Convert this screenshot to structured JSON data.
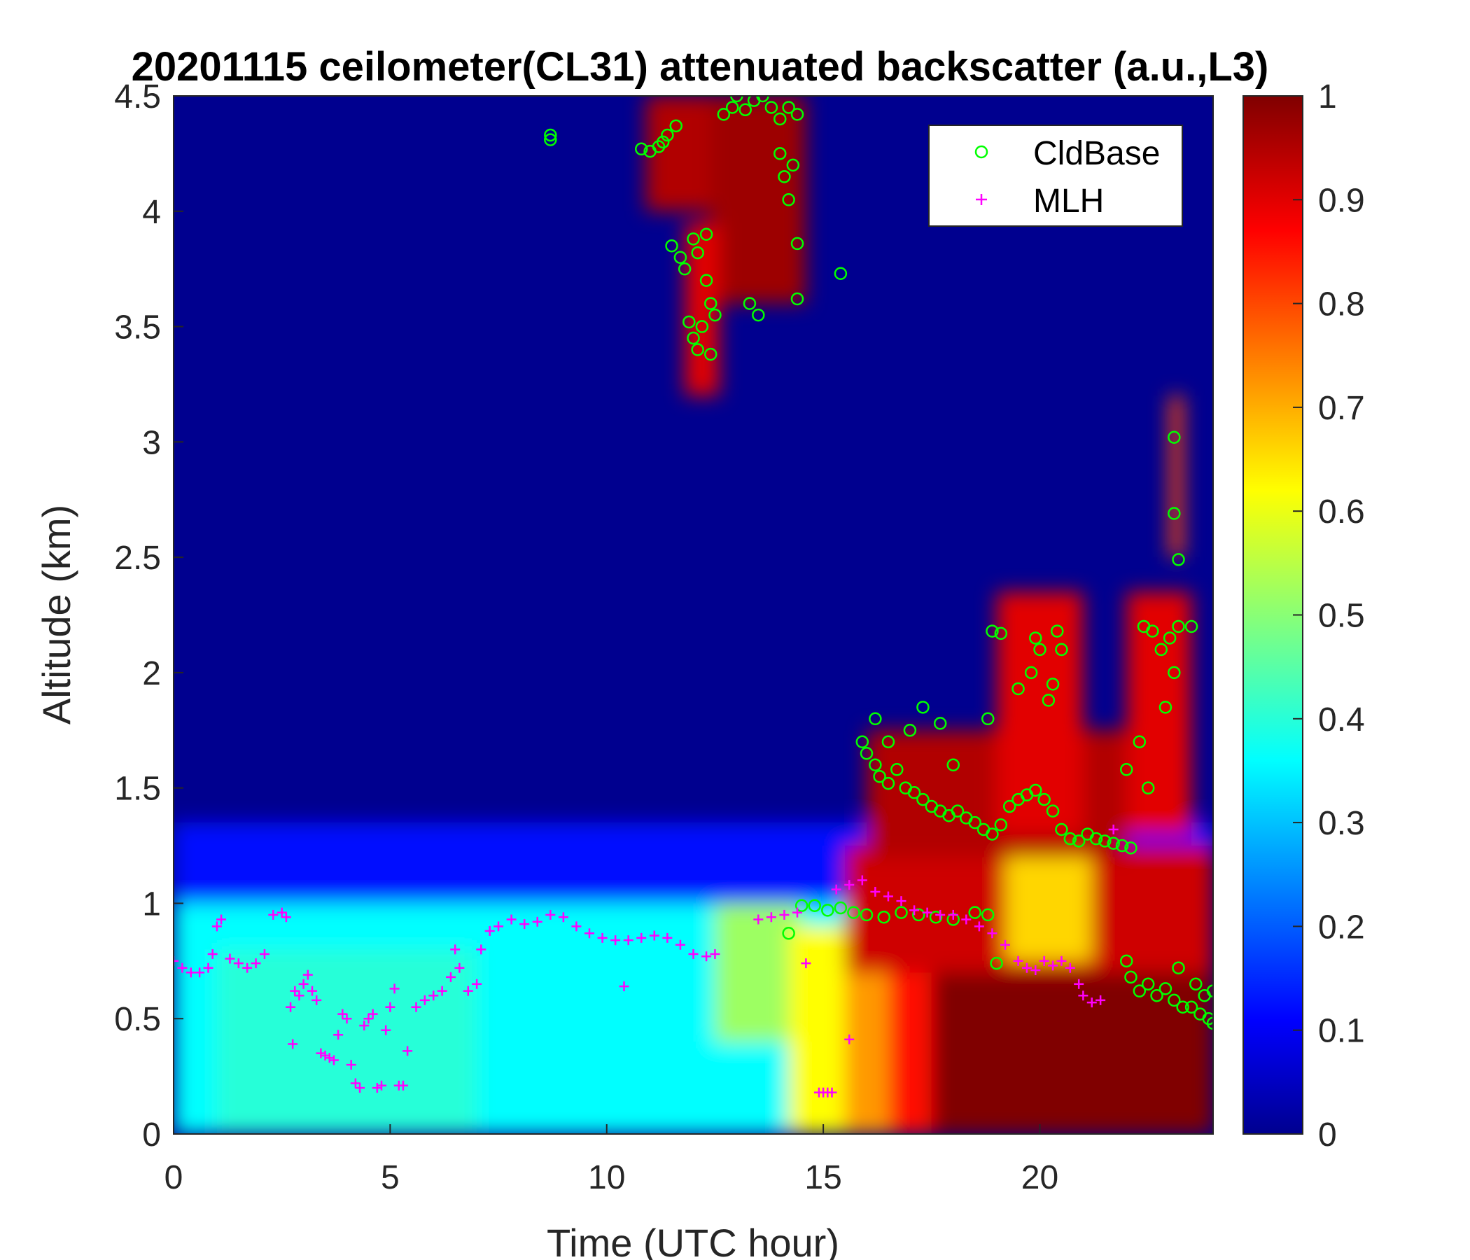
{
  "chart_data": {
    "type": "heatmap",
    "title": "20201115 ceilometer(CL31) attenuated backscatter (a.u.,L3)",
    "xlabel": "Time (UTC hour)",
    "ylabel": "Altitude (km)",
    "xlim": [
      0,
      24
    ],
    "ylim": [
      0,
      4.5
    ],
    "xticks": [
      0,
      5,
      10,
      15,
      20
    ],
    "xtick_labels": [
      "0",
      "5",
      "10",
      "15",
      "20"
    ],
    "yticks": [
      0,
      0.5,
      1,
      1.5,
      2,
      2.5,
      3,
      3.5,
      4,
      4.5
    ],
    "ytick_labels": [
      "0",
      "0.5",
      "1",
      "1.5",
      "2",
      "2.5",
      "3",
      "3.5",
      "4",
      "4.5"
    ],
    "colorbar": {
      "colormap": "jet",
      "clim": [
        0,
        1
      ],
      "ticks": [
        0,
        0.1,
        0.2,
        0.3,
        0.4,
        0.5,
        0.6,
        0.7,
        0.8,
        0.9,
        1
      ],
      "tick_labels": [
        "0",
        "0.1",
        "0.2",
        "0.3",
        "0.4",
        "0.5",
        "0.6",
        "0.7",
        "0.8",
        "0.9",
        "1"
      ]
    },
    "background_value": 0.0,
    "regions": [
      {
        "x": [
          0,
          24
        ],
        "y": [
          0,
          1.35
        ],
        "value": 0.12
      },
      {
        "x": [
          0,
          24
        ],
        "y": [
          0,
          1.0
        ],
        "value": 0.36
      },
      {
        "x": [
          1,
          7
        ],
        "y": [
          0,
          0.8
        ],
        "value": 0.4
      },
      {
        "x": [
          12.5,
          14.5
        ],
        "y": [
          0.4,
          1.0
        ],
        "value": 0.52
      },
      {
        "x": [
          14.2,
          15.8
        ],
        "y": [
          0,
          0.9
        ],
        "value": 0.62
      },
      {
        "x": [
          15.5,
          17.0
        ],
        "y": [
          0,
          0.9
        ],
        "value": 0.72
      },
      {
        "x": [
          16.5,
          18.5
        ],
        "y": [
          0,
          0.85
        ],
        "value": 0.86
      },
      {
        "x": [
          17.5,
          24
        ],
        "y": [
          0,
          0.75
        ],
        "value": 1.0
      },
      {
        "x": [
          15.5,
          24
        ],
        "y": [
          0.7,
          1.25
        ],
        "value": 0.92
      },
      {
        "x": [
          19.2,
          21.2
        ],
        "y": [
          0.75,
          1.3
        ],
        "value": 0.66
      },
      {
        "x": [
          16,
          22
        ],
        "y": [
          1.2,
          1.75
        ],
        "value": 0.95
      },
      {
        "x": [
          19,
          21
        ],
        "y": [
          1.3,
          2.35
        ],
        "value": 0.9
      },
      {
        "x": [
          22,
          23.5
        ],
        "y": [
          1.3,
          2.35
        ],
        "value": 0.9
      },
      {
        "x": [
          10.9,
          12.6
        ],
        "y": [
          4.0,
          4.5
        ],
        "value": 0.95
      },
      {
        "x": [
          12.4,
          14.6
        ],
        "y": [
          3.6,
          4.5
        ],
        "value": 0.97
      },
      {
        "x": [
          11.8,
          12.6
        ],
        "y": [
          3.2,
          3.95
        ],
        "value": 0.9
      },
      {
        "x": [
          23,
          23.3
        ],
        "y": [
          2.5,
          3.2
        ],
        "value": 0.8
      }
    ],
    "legend": {
      "position": "top-right",
      "entries": [
        "CldBase",
        "MLH"
      ]
    },
    "series": [
      {
        "name": "CldBase",
        "marker": "circle",
        "color": "#00ff00",
        "points": [
          [
            8.7,
            4.33
          ],
          [
            8.7,
            4.31
          ],
          [
            10.8,
            4.27
          ],
          [
            11.0,
            4.26
          ],
          [
            11.2,
            4.28
          ],
          [
            11.4,
            4.33
          ],
          [
            11.6,
            4.37
          ],
          [
            11.3,
            4.3
          ],
          [
            11.5,
            3.85
          ],
          [
            11.7,
            3.8
          ],
          [
            11.8,
            3.75
          ],
          [
            12.0,
            3.88
          ],
          [
            12.1,
            3.82
          ],
          [
            12.3,
            3.9
          ],
          [
            11.9,
            3.52
          ],
          [
            12.0,
            3.45
          ],
          [
            12.1,
            3.4
          ],
          [
            12.2,
            3.5
          ],
          [
            12.4,
            3.6
          ],
          [
            12.5,
            3.55
          ],
          [
            12.3,
            3.7
          ],
          [
            12.4,
            3.38
          ],
          [
            12.7,
            4.42
          ],
          [
            12.9,
            4.45
          ],
          [
            13.0,
            4.5
          ],
          [
            13.2,
            4.44
          ],
          [
            13.4,
            4.48
          ],
          [
            13.6,
            4.5
          ],
          [
            13.8,
            4.45
          ],
          [
            14.0,
            4.4
          ],
          [
            14.2,
            4.45
          ],
          [
            14.4,
            4.42
          ],
          [
            14.0,
            4.25
          ],
          [
            14.1,
            4.15
          ],
          [
            14.2,
            4.05
          ],
          [
            14.3,
            4.2
          ],
          [
            13.3,
            3.6
          ],
          [
            13.5,
            3.55
          ],
          [
            14.4,
            3.86
          ],
          [
            14.4,
            3.62
          ],
          [
            15.4,
            3.73
          ],
          [
            14.2,
            0.87
          ],
          [
            14.5,
            0.99
          ],
          [
            14.8,
            0.99
          ],
          [
            15.1,
            0.97
          ],
          [
            15.4,
            0.98
          ],
          [
            15.7,
            0.96
          ],
          [
            16.0,
            0.95
          ],
          [
            16.4,
            0.94
          ],
          [
            16.8,
            0.96
          ],
          [
            17.2,
            0.95
          ],
          [
            17.6,
            0.94
          ],
          [
            18.0,
            0.93
          ],
          [
            18.5,
            0.96
          ],
          [
            18.8,
            0.95
          ],
          [
            19.0,
            0.74
          ],
          [
            15.9,
            1.7
          ],
          [
            16.0,
            1.65
          ],
          [
            16.2,
            1.6
          ],
          [
            16.3,
            1.55
          ],
          [
            16.5,
            1.52
          ],
          [
            16.7,
            1.58
          ],
          [
            16.9,
            1.5
          ],
          [
            17.1,
            1.48
          ],
          [
            17.3,
            1.45
          ],
          [
            17.5,
            1.42
          ],
          [
            17.7,
            1.4
          ],
          [
            17.9,
            1.38
          ],
          [
            18.1,
            1.4
          ],
          [
            18.3,
            1.37
          ],
          [
            18.5,
            1.35
          ],
          [
            18.7,
            1.32
          ],
          [
            18.9,
            1.3
          ],
          [
            19.1,
            1.34
          ],
          [
            19.3,
            1.42
          ],
          [
            19.5,
            1.45
          ],
          [
            19.7,
            1.47
          ],
          [
            19.9,
            1.49
          ],
          [
            20.1,
            1.45
          ],
          [
            20.3,
            1.4
          ],
          [
            20.5,
            1.32
          ],
          [
            20.7,
            1.28
          ],
          [
            20.9,
            1.27
          ],
          [
            21.1,
            1.3
          ],
          [
            21.3,
            1.28
          ],
          [
            21.5,
            1.27
          ],
          [
            21.7,
            1.26
          ],
          [
            21.9,
            1.25
          ],
          [
            22.1,
            1.24
          ],
          [
            16.2,
            1.8
          ],
          [
            16.5,
            1.7
          ],
          [
            17.0,
            1.75
          ],
          [
            17.3,
            1.85
          ],
          [
            17.7,
            1.78
          ],
          [
            18.0,
            1.6
          ],
          [
            18.8,
            1.8
          ],
          [
            18.9,
            2.18
          ],
          [
            19.1,
            2.17
          ],
          [
            19.5,
            1.93
          ],
          [
            19.8,
            2.0
          ],
          [
            19.9,
            2.15
          ],
          [
            20.0,
            2.1
          ],
          [
            20.2,
            1.88
          ],
          [
            20.4,
            2.18
          ],
          [
            20.5,
            2.1
          ],
          [
            20.3,
            1.95
          ],
          [
            22.0,
            1.58
          ],
          [
            22.3,
            1.7
          ],
          [
            22.5,
            1.5
          ],
          [
            22.4,
            2.2
          ],
          [
            22.6,
            2.18
          ],
          [
            22.8,
            2.1
          ],
          [
            23.0,
            2.15
          ],
          [
            23.2,
            2.2
          ],
          [
            23.5,
            2.2
          ],
          [
            23.1,
            2.0
          ],
          [
            22.9,
            1.85
          ],
          [
            23.1,
            3.02
          ],
          [
            23.1,
            2.69
          ],
          [
            23.2,
            2.49
          ],
          [
            22.0,
            0.75
          ],
          [
            22.1,
            0.68
          ],
          [
            22.3,
            0.62
          ],
          [
            22.5,
            0.65
          ],
          [
            22.7,
            0.6
          ],
          [
            22.9,
            0.63
          ],
          [
            23.1,
            0.58
          ],
          [
            23.3,
            0.55
          ],
          [
            23.5,
            0.55
          ],
          [
            23.7,
            0.52
          ],
          [
            23.9,
            0.5
          ],
          [
            24.0,
            0.48
          ],
          [
            23.2,
            0.72
          ],
          [
            23.6,
            0.65
          ],
          [
            23.8,
            0.6
          ],
          [
            24.0,
            0.62
          ]
        ]
      },
      {
        "name": "MLH",
        "marker": "plus",
        "color": "#ff00ff",
        "points": [
          [
            0.0,
            0.75
          ],
          [
            0.2,
            0.72
          ],
          [
            0.4,
            0.7
          ],
          [
            0.6,
            0.7
          ],
          [
            0.8,
            0.72
          ],
          [
            0.9,
            0.78
          ],
          [
            1.0,
            0.9
          ],
          [
            1.1,
            0.93
          ],
          [
            1.3,
            0.76
          ],
          [
            1.5,
            0.74
          ],
          [
            1.7,
            0.72
          ],
          [
            1.9,
            0.74
          ],
          [
            2.1,
            0.78
          ],
          [
            2.3,
            0.95
          ],
          [
            2.5,
            0.96
          ],
          [
            2.6,
            0.94
          ],
          [
            2.7,
            0.55
          ],
          [
            2.75,
            0.39
          ],
          [
            2.8,
            0.62
          ],
          [
            2.9,
            0.6
          ],
          [
            3.0,
            0.65
          ],
          [
            3.1,
            0.69
          ],
          [
            3.2,
            0.62
          ],
          [
            3.3,
            0.58
          ],
          [
            3.4,
            0.35
          ],
          [
            3.5,
            0.34
          ],
          [
            3.6,
            0.33
          ],
          [
            3.7,
            0.32
          ],
          [
            3.8,
            0.43
          ],
          [
            3.9,
            0.52
          ],
          [
            4.0,
            0.5
          ],
          [
            4.1,
            0.3
          ],
          [
            4.2,
            0.22
          ],
          [
            4.3,
            0.2
          ],
          [
            4.4,
            0.47
          ],
          [
            4.5,
            0.5
          ],
          [
            4.6,
            0.52
          ],
          [
            4.7,
            0.2
          ],
          [
            4.8,
            0.21
          ],
          [
            4.9,
            0.45
          ],
          [
            5.0,
            0.55
          ],
          [
            5.1,
            0.63
          ],
          [
            5.2,
            0.21
          ],
          [
            5.3,
            0.21
          ],
          [
            5.4,
            0.36
          ],
          [
            5.6,
            0.55
          ],
          [
            5.8,
            0.58
          ],
          [
            6.0,
            0.6
          ],
          [
            6.2,
            0.62
          ],
          [
            6.4,
            0.68
          ],
          [
            6.5,
            0.8
          ],
          [
            6.6,
            0.72
          ],
          [
            6.8,
            0.62
          ],
          [
            7.0,
            0.65
          ],
          [
            7.1,
            0.8
          ],
          [
            7.3,
            0.88
          ],
          [
            7.5,
            0.9
          ],
          [
            7.8,
            0.93
          ],
          [
            8.1,
            0.91
          ],
          [
            8.4,
            0.92
          ],
          [
            8.7,
            0.95
          ],
          [
            9.0,
            0.94
          ],
          [
            9.3,
            0.9
          ],
          [
            9.6,
            0.87
          ],
          [
            9.9,
            0.85
          ],
          [
            10.2,
            0.84
          ],
          [
            10.5,
            0.84
          ],
          [
            10.8,
            0.85
          ],
          [
            11.1,
            0.86
          ],
          [
            11.4,
            0.85
          ],
          [
            11.7,
            0.82
          ],
          [
            12.0,
            0.78
          ],
          [
            12.3,
            0.77
          ],
          [
            12.5,
            0.78
          ],
          [
            10.4,
            0.64
          ],
          [
            13.5,
            0.93
          ],
          [
            13.8,
            0.94
          ],
          [
            14.1,
            0.95
          ],
          [
            14.4,
            0.96
          ],
          [
            14.6,
            0.74
          ],
          [
            14.9,
            0.18
          ],
          [
            15.0,
            0.18
          ],
          [
            15.1,
            0.18
          ],
          [
            15.2,
            0.18
          ],
          [
            15.6,
            0.41
          ],
          [
            15.3,
            1.06
          ],
          [
            15.6,
            1.08
          ],
          [
            15.9,
            1.1
          ],
          [
            16.2,
            1.05
          ],
          [
            16.5,
            1.03
          ],
          [
            16.8,
            1.01
          ],
          [
            17.1,
            0.97
          ],
          [
            17.4,
            0.96
          ],
          [
            17.7,
            0.95
          ],
          [
            18.0,
            0.95
          ],
          [
            18.3,
            0.93
          ],
          [
            18.6,
            0.9
          ],
          [
            18.9,
            0.87
          ],
          [
            19.2,
            0.82
          ],
          [
            19.5,
            0.75
          ],
          [
            19.7,
            0.72
          ],
          [
            19.9,
            0.71
          ],
          [
            20.1,
            0.75
          ],
          [
            20.3,
            0.73
          ],
          [
            20.5,
            0.75
          ],
          [
            20.7,
            0.72
          ],
          [
            20.9,
            0.65
          ],
          [
            21.0,
            0.6
          ],
          [
            21.2,
            0.57
          ],
          [
            21.4,
            0.58
          ],
          [
            21.7,
            1.32
          ]
        ]
      }
    ]
  }
}
